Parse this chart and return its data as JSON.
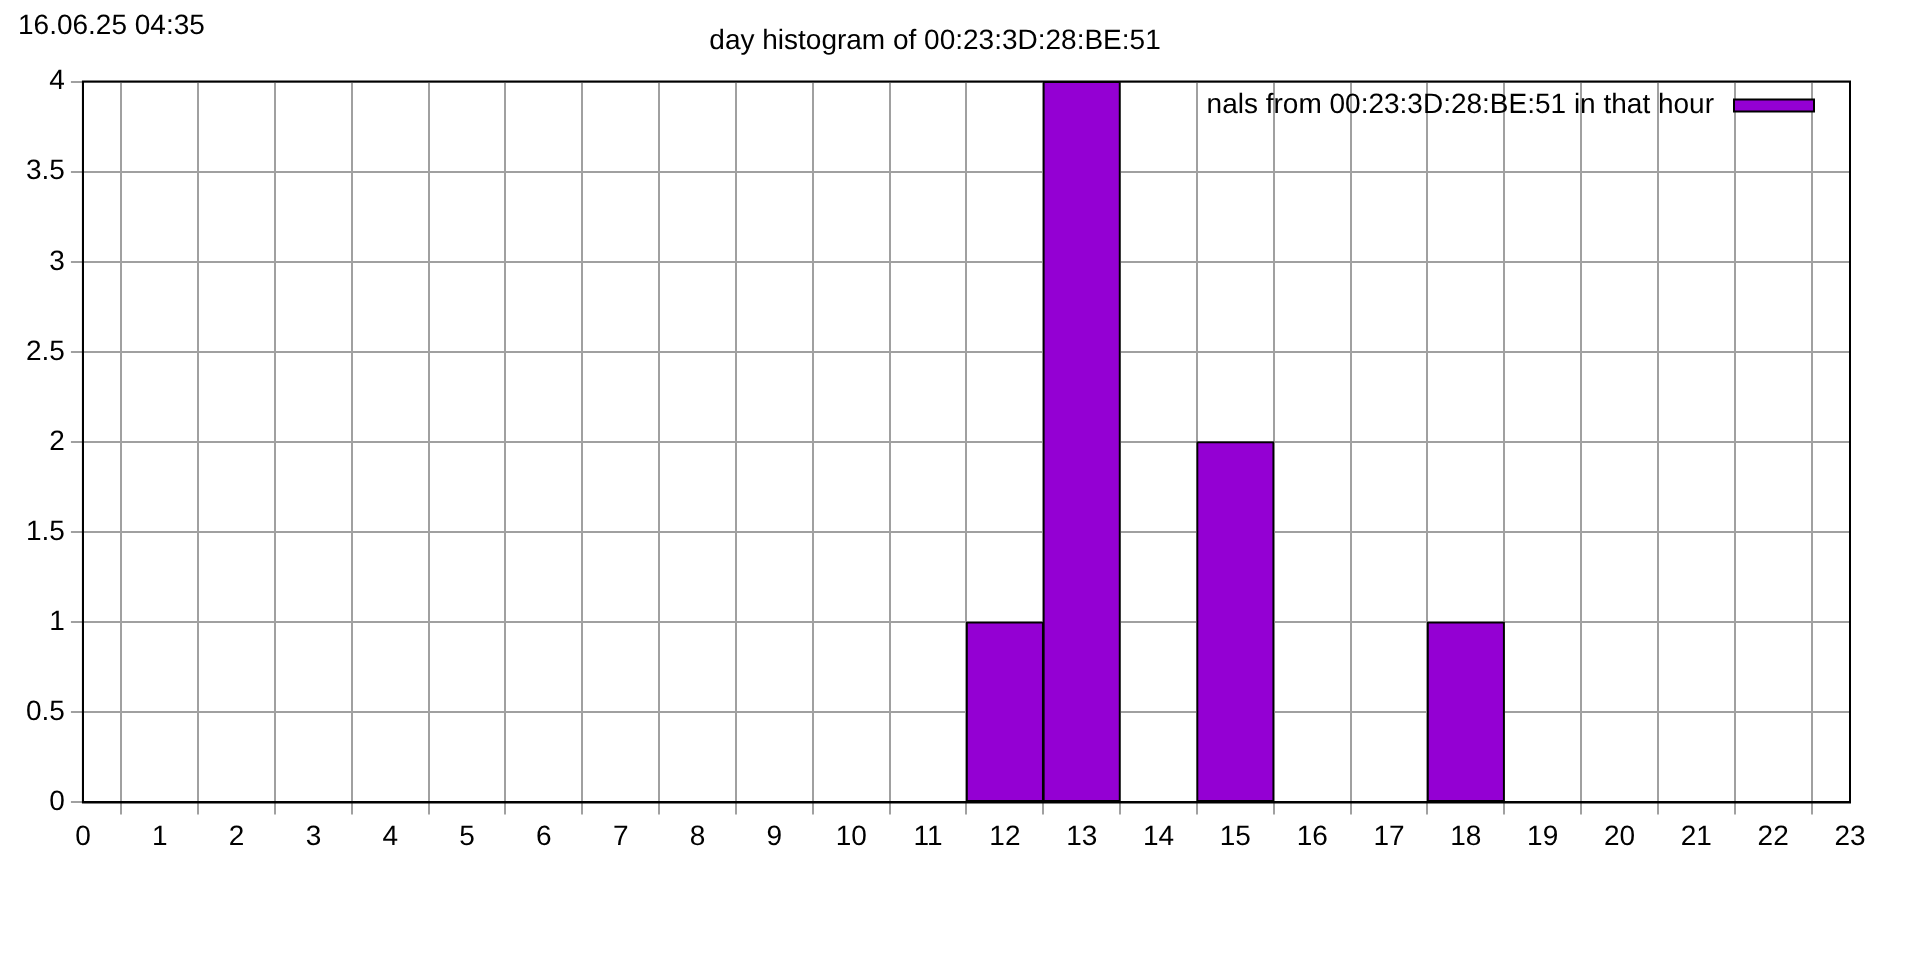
{
  "chart_data": {
    "type": "bar",
    "title": "day histogram of 00:23:3D:28:BE:51",
    "annotations": [
      "16.06.25 04:35"
    ],
    "x": [
      0,
      1,
      2,
      3,
      4,
      5,
      6,
      7,
      8,
      9,
      10,
      11,
      12,
      13,
      14,
      15,
      16,
      17,
      18,
      19,
      20,
      21,
      22
    ],
    "series": [
      {
        "name": "nals from 00:23:3D:28:BE:51 in that hour",
        "color": "#9400d3",
        "values": [
          0,
          0,
          0,
          0,
          0,
          0,
          0,
          0,
          0,
          0,
          0,
          0,
          1,
          4,
          0,
          2,
          0,
          0,
          1,
          0,
          0,
          0,
          0
        ]
      }
    ],
    "xlim": [
      0,
      23
    ],
    "xticks": [
      0,
      1,
      2,
      3,
      4,
      5,
      6,
      7,
      8,
      9,
      10,
      11,
      12,
      13,
      14,
      15,
      16,
      17,
      18,
      19,
      20,
      21,
      22,
      23
    ],
    "ylim": [
      0,
      4
    ],
    "yticks": [
      0,
      0.5,
      1,
      1.5,
      2,
      2.5,
      3,
      3.5,
      4
    ],
    "grid": true,
    "legend": "top right"
  }
}
